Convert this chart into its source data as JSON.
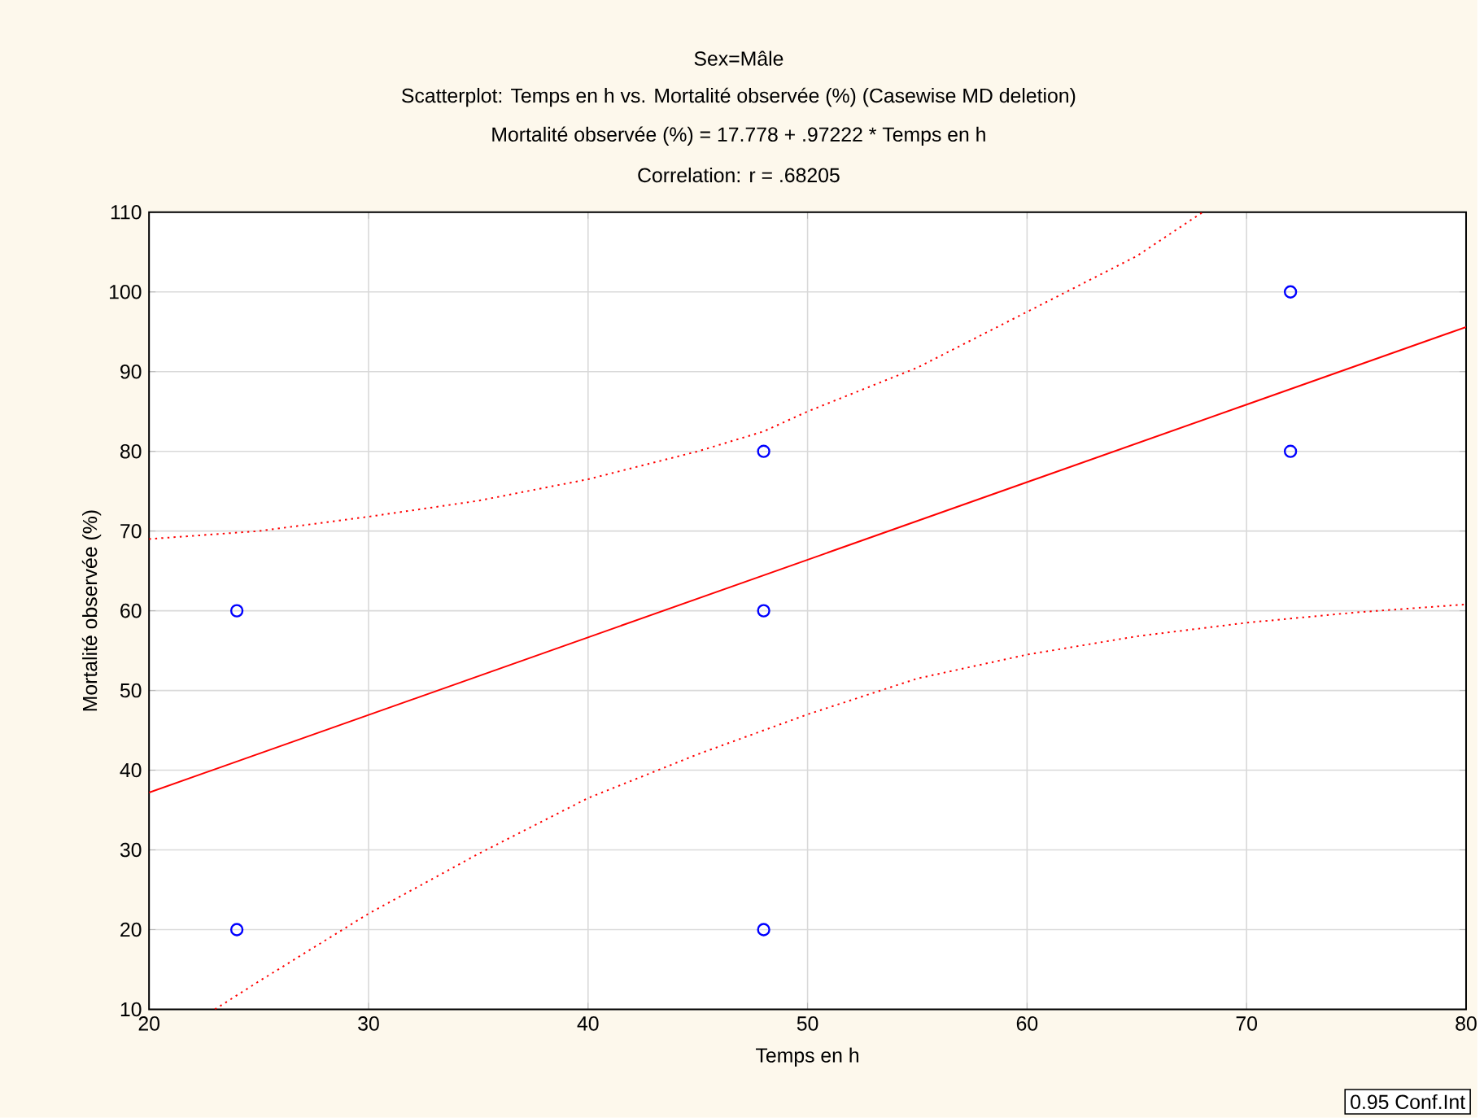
{
  "chart_data": {
    "type": "scatter",
    "title": "Sex=Mâle",
    "subtitle": "Scatterplot: Temps en h vs. Mortalité observée (%) (Casewise MD deletion)",
    "xlabel": "Temps en h",
    "ylabel": "Mortalité observée (%)",
    "annotations": [
      "Mortalité observée (%) = 17.778 + .97222 * Temps en h",
      "Correlation: r = .68205",
      "0.95 Conf.Int"
    ],
    "series": [
      {
        "type": "scatter",
        "color": "#0000ff",
        "marker": "circle",
        "x": [
          24,
          24,
          48,
          48,
          48,
          72,
          72
        ],
        "values": [
          60,
          20,
          80,
          60,
          20,
          100,
          80
        ]
      },
      {
        "type": "line",
        "color": "#ff0000",
        "line_style": "solid",
        "x": [
          20,
          80
        ],
        "values": [
          37.2,
          95.6
        ]
      },
      {
        "type": "line",
        "color": "#ff0000",
        "line_style": "dotted",
        "x": [
          20,
          25,
          30,
          35,
          40,
          45,
          48,
          50,
          55,
          60,
          65,
          68
        ],
        "values": [
          69,
          70,
          71.8,
          73.8,
          76.5,
          80,
          82.5,
          85,
          90.5,
          97.5,
          104.5,
          110
        ]
      },
      {
        "type": "line",
        "color": "#ff0000",
        "line_style": "dotted",
        "x": [
          23,
          25,
          30,
          35,
          40,
          45,
          50,
          55,
          60,
          65,
          70,
          75,
          80
        ],
        "values": [
          10,
          13.5,
          22,
          29.5,
          36.5,
          42,
          47,
          51.5,
          54.5,
          56.8,
          58.5,
          59.8,
          60.8
        ]
      }
    ],
    "xlim": [
      20,
      80
    ],
    "ylim": [
      10,
      110
    ],
    "xticks": [
      20,
      30,
      40,
      50,
      60,
      70,
      80
    ],
    "yticks": [
      10,
      20,
      30,
      40,
      50,
      60,
      70,
      80,
      90,
      100,
      110
    ],
    "grid": true
  }
}
